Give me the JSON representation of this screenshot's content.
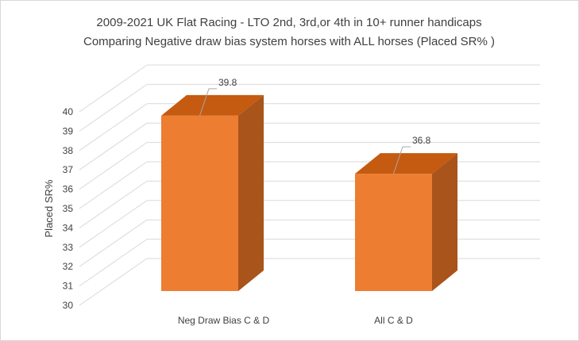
{
  "chart_data": {
    "type": "bar",
    "title_line1": "2009-2021 UK Flat Racing - LTO 2nd, 3rd,or 4th in 10+ runner handicaps",
    "title_line2": "Comparing Negative draw bias system horses with ALL horses (Placed SR% )",
    "xlabel": "",
    "ylabel": "Placed SR%",
    "ylim": [
      30,
      40
    ],
    "yticks": [
      "30",
      "31",
      "32",
      "33",
      "34",
      "35",
      "36",
      "37",
      "38",
      "39",
      "40"
    ],
    "categories": [
      "Neg Draw Bias C & D",
      "All C & D"
    ],
    "values": [
      39.8,
      36.8
    ],
    "value_labels": [
      "39.8",
      "36.8"
    ],
    "grid": true,
    "legend": "none",
    "style": "3d-column",
    "colors": {
      "front": "#ED7D31",
      "side": "#A9541B",
      "top": "#C55A11",
      "grid": "#d9d9d9",
      "text": "#404040"
    }
  }
}
